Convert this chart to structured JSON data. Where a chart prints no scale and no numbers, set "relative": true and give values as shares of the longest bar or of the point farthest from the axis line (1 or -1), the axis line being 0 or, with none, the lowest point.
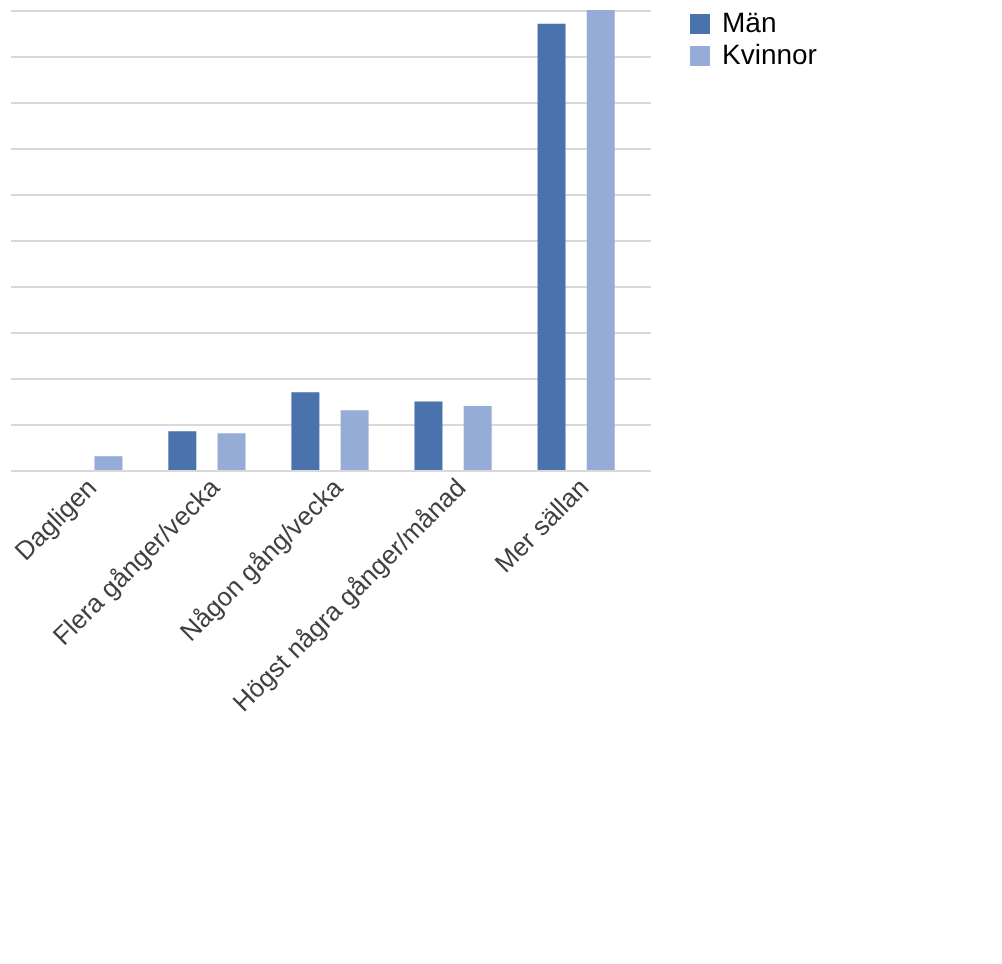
{
  "chart_data": {
    "type": "bar",
    "relative": true,
    "grid": "y",
    "legend": "right",
    "categories": [
      "Dagligen",
      "Flera gånger/vecka",
      "Någon gång/vecka",
      "Högst några gånger/månad",
      "Mer sällan"
    ],
    "series": [
      {
        "name": "Män",
        "color": "#4a72ad",
        "values": [
          0,
          0.084,
          0.169,
          0.149,
          0.97
        ]
      },
      {
        "name": "Kvinnor",
        "color": "#95acd6",
        "values": [
          0.03,
          0.08,
          0.13,
          0.139,
          1
        ]
      }
    ]
  }
}
